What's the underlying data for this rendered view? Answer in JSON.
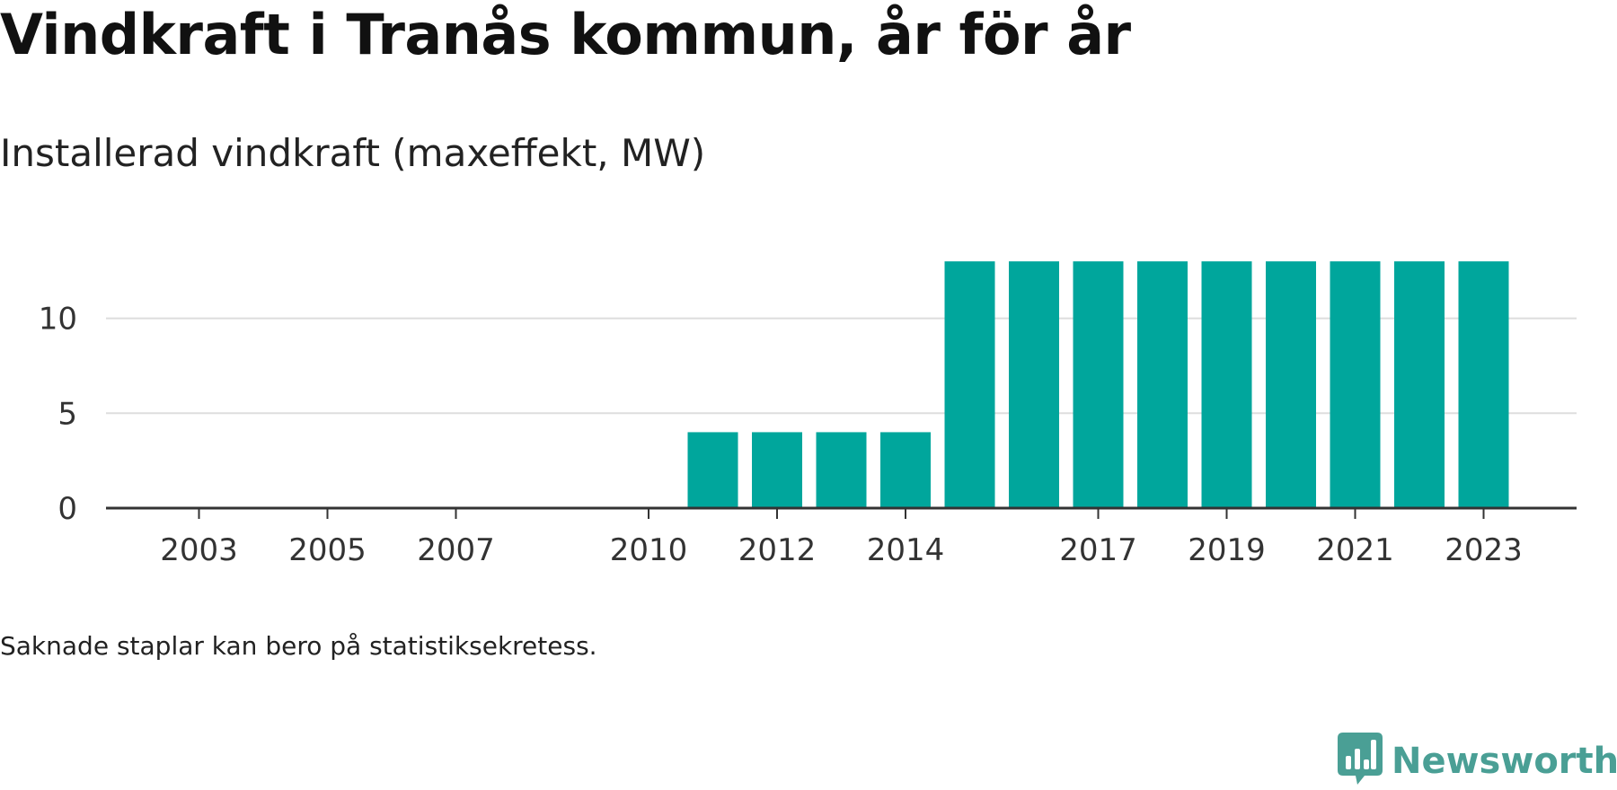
{
  "header": {
    "title": "Vindkraft i Tranås kommun, år för år",
    "subtitle": "Installerad vindkraft (maxeffekt, MW)"
  },
  "footnote": "Saknade staplar kan bero på statistiksekretess.",
  "brand": {
    "name": "Newsworthy",
    "icon": "newsworthy-logo-icon",
    "color": "#4a9f95"
  },
  "colors": {
    "bar": "#00a69c",
    "grid": "#dddddd",
    "axis": "#333333"
  },
  "chart_data": {
    "type": "bar",
    "categories": [
      "2002",
      "2003",
      "2004",
      "2005",
      "2006",
      "2007",
      "2008",
      "2009",
      "2010",
      "2011",
      "2012",
      "2013",
      "2014",
      "2015",
      "2016",
      "2017",
      "2018",
      "2019",
      "2020",
      "2021",
      "2022",
      "2023"
    ],
    "values": [
      0,
      0,
      0,
      0,
      0,
      0,
      0,
      0,
      0,
      4,
      4,
      4,
      4,
      13,
      13,
      13,
      13,
      13,
      13,
      13,
      13,
      13
    ],
    "x_tick_labels": [
      "2003",
      "2005",
      "2007",
      "2010",
      "2012",
      "2014",
      "2017",
      "2019",
      "2021",
      "2023"
    ],
    "y_ticks": [
      0,
      5,
      10
    ],
    "ylim": [
      0,
      14
    ],
    "title": "Vindkraft i Tranås kommun, år för år",
    "subtitle": "Installerad vindkraft (maxeffekt, MW)",
    "xlabel": "",
    "ylabel": "",
    "grid": true,
    "legend": "none"
  }
}
